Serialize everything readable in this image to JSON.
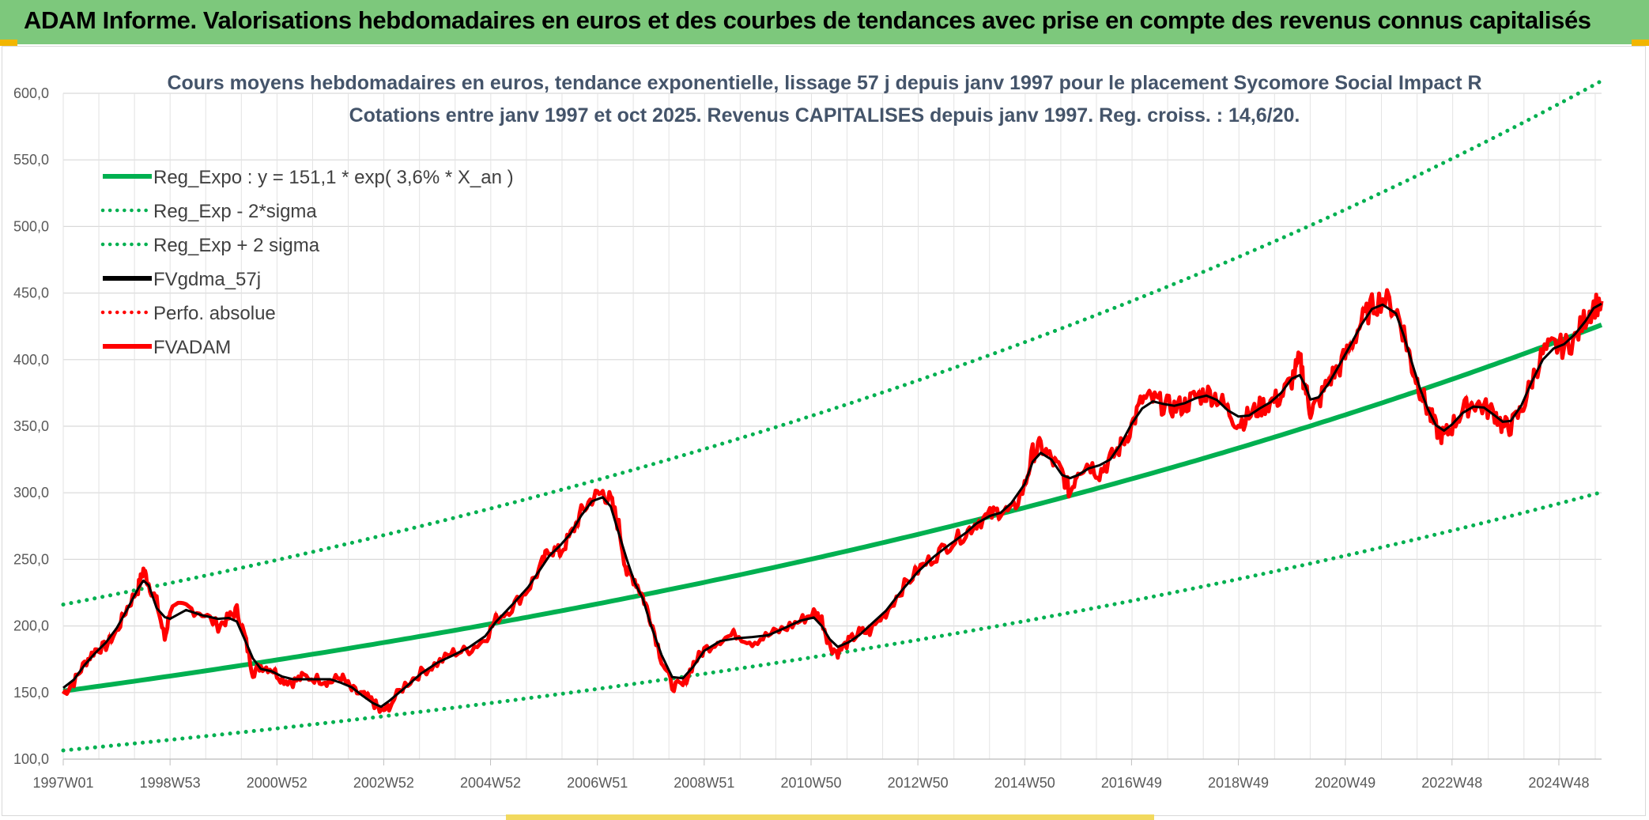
{
  "banner": {
    "title": "ADAM Informe. Valorisations hebdomadaires en euros et des courbes de tendances avec prise en compte des revenus connus capitalisés"
  },
  "chart_data": {
    "type": "line",
    "title_line1": "Cours moyens hebdomadaires en euros, tendance exponentielle, lissage 57 j depuis janv 1997 pour le placement Sycomore Social Impact R",
    "title_line2": "Cotations entre janv 1997 et oct 2025. Revenus CAPITALISES depuis janv 1997. Reg. croiss. : 14,6/20.",
    "xlabel": "",
    "ylabel": "",
    "x_range": [
      1997.0,
      2025.8
    ],
    "ylim": [
      100,
      600
    ],
    "y_ticks": [
      "100,0",
      "150,0",
      "200,0",
      "250,0",
      "300,0",
      "350,0",
      "400,0",
      "450,0",
      "500,0",
      "550,0",
      "600,0"
    ],
    "x_tick_labels": [
      "1997W01",
      "1998W53",
      "2000W52",
      "2002W52",
      "2004W52",
      "2006W51",
      "2008W51",
      "2010W50",
      "2012W50",
      "2014W50",
      "2016W49",
      "2018W49",
      "2020W49",
      "2022W48",
      "2024W48"
    ],
    "x_tick_positions": [
      1997.0,
      1999.0,
      2001.0,
      2003.0,
      2005.0,
      2007.0,
      2009.0,
      2011.0,
      2013.0,
      2015.0,
      2017.0,
      2019.0,
      2021.0,
      2023.0,
      2025.0
    ],
    "grid": true,
    "legend_position": "top-left",
    "regression": {
      "a": 151.1,
      "rate": 0.036,
      "sigma_factor_low": 0.705,
      "sigma_factor_high": 1.43
    },
    "series": [
      {
        "name": "Reg_Expo : y = 151,1 * exp( 3,6% *  X_an )",
        "color": "#00b050",
        "style": "solid"
      },
      {
        "name": "Reg_Exp - 2*sigma",
        "color": "#00b050",
        "style": "dotted"
      },
      {
        "name": "Reg_Exp + 2 sigma",
        "color": "#00b050",
        "style": "dotted"
      },
      {
        "name": "FVgdma_57j",
        "color": "#000000",
        "style": "solid"
      },
      {
        "name": "Perfo. absolue",
        "color": "#ff0000",
        "style": "dotted"
      },
      {
        "name": "FVADAM",
        "color": "#ff0000",
        "style": "solid"
      }
    ],
    "price_points": [
      [
        1997.0,
        149
      ],
      [
        1997.2,
        158
      ],
      [
        1997.4,
        172
      ],
      [
        1997.6,
        182
      ],
      [
        1997.8,
        185
      ],
      [
        1998.0,
        196
      ],
      [
        1998.2,
        214
      ],
      [
        1998.4,
        228
      ],
      [
        1998.5,
        242
      ],
      [
        1998.6,
        232
      ],
      [
        1998.75,
        218
      ],
      [
        1998.9,
        190
      ],
      [
        1999.0,
        212
      ],
      [
        1999.3,
        214
      ],
      [
        1999.6,
        210
      ],
      [
        1999.9,
        200
      ],
      [
        2000.1,
        206
      ],
      [
        2000.25,
        212
      ],
      [
        2000.4,
        192
      ],
      [
        2000.55,
        165
      ],
      [
        2000.7,
        170
      ],
      [
        2000.9,
        168
      ],
      [
        2001.1,
        160
      ],
      [
        2001.3,
        158
      ],
      [
        2001.5,
        162
      ],
      [
        2001.8,
        160
      ],
      [
        2002.0,
        158
      ],
      [
        2002.2,
        162
      ],
      [
        2002.4,
        152
      ],
      [
        2002.6,
        148
      ],
      [
        2002.8,
        143
      ],
      [
        2002.95,
        135
      ],
      [
        2003.1,
        140
      ],
      [
        2003.4,
        156
      ],
      [
        2003.7,
        165
      ],
      [
        2004.0,
        172
      ],
      [
        2004.3,
        180
      ],
      [
        2004.6,
        182
      ],
      [
        2004.9,
        190
      ],
      [
        2005.1,
        205
      ],
      [
        2005.4,
        214
      ],
      [
        2005.7,
        228
      ],
      [
        2005.95,
        245
      ],
      [
        2006.1,
        258
      ],
      [
        2006.3,
        255
      ],
      [
        2006.5,
        268
      ],
      [
        2006.7,
        285
      ],
      [
        2006.9,
        296
      ],
      [
        2007.1,
        300
      ],
      [
        2007.25,
        294
      ],
      [
        2007.4,
        275
      ],
      [
        2007.55,
        240
      ],
      [
        2007.7,
        235
      ],
      [
        2007.85,
        222
      ],
      [
        2008.0,
        205
      ],
      [
        2008.2,
        175
      ],
      [
        2008.4,
        155
      ],
      [
        2008.6,
        155
      ],
      [
        2008.8,
        172
      ],
      [
        2009.0,
        182
      ],
      [
        2009.3,
        190
      ],
      [
        2009.6,
        194
      ],
      [
        2009.9,
        188
      ],
      [
        2010.2,
        193
      ],
      [
        2010.5,
        198
      ],
      [
        2010.8,
        204
      ],
      [
        2011.05,
        210
      ],
      [
        2011.2,
        205
      ],
      [
        2011.35,
        185
      ],
      [
        2011.5,
        180
      ],
      [
        2011.7,
        188
      ],
      [
        2011.9,
        195
      ],
      [
        2012.1,
        196
      ],
      [
        2012.4,
        210
      ],
      [
        2012.7,
        228
      ],
      [
        2013.0,
        242
      ],
      [
        2013.3,
        252
      ],
      [
        2013.6,
        262
      ],
      [
        2013.9,
        270
      ],
      [
        2014.1,
        278
      ],
      [
        2014.35,
        283
      ],
      [
        2014.55,
        287
      ],
      [
        2014.75,
        285
      ],
      [
        2015.0,
        305
      ],
      [
        2015.15,
        330
      ],
      [
        2015.3,
        335
      ],
      [
        2015.5,
        325
      ],
      [
        2015.7,
        315
      ],
      [
        2015.85,
        300
      ],
      [
        2016.0,
        318
      ],
      [
        2016.2,
        322
      ],
      [
        2016.4,
        315
      ],
      [
        2016.6,
        325
      ],
      [
        2016.8,
        335
      ],
      [
        2017.0,
        350
      ],
      [
        2017.2,
        370
      ],
      [
        2017.4,
        370
      ],
      [
        2017.6,
        366
      ],
      [
        2017.8,
        364
      ],
      [
        2018.0,
        366
      ],
      [
        2018.2,
        372
      ],
      [
        2018.4,
        375
      ],
      [
        2018.6,
        372
      ],
      [
        2018.8,
        362
      ],
      [
        2019.0,
        352
      ],
      [
        2019.2,
        358
      ],
      [
        2019.4,
        364
      ],
      [
        2019.6,
        368
      ],
      [
        2019.8,
        372
      ],
      [
        2020.0,
        385
      ],
      [
        2020.15,
        400
      ],
      [
        2020.25,
        380
      ],
      [
        2020.35,
        362
      ],
      [
        2020.5,
        368
      ],
      [
        2020.7,
        385
      ],
      [
        2020.9,
        395
      ],
      [
        2021.1,
        410
      ],
      [
        2021.3,
        428
      ],
      [
        2021.5,
        440
      ],
      [
        2021.7,
        446
      ],
      [
        2021.95,
        438
      ],
      [
        2022.1,
        420
      ],
      [
        2022.25,
        395
      ],
      [
        2022.4,
        378
      ],
      [
        2022.55,
        362
      ],
      [
        2022.7,
        348
      ],
      [
        2022.85,
        342
      ],
      [
        2023.0,
        350
      ],
      [
        2023.2,
        362
      ],
      [
        2023.4,
        368
      ],
      [
        2023.6,
        364
      ],
      [
        2023.8,
        360
      ],
      [
        2023.95,
        350
      ],
      [
        2024.1,
        350
      ],
      [
        2024.3,
        362
      ],
      [
        2024.5,
        385
      ],
      [
        2024.7,
        405
      ],
      [
        2024.9,
        410
      ],
      [
        2025.1,
        410
      ],
      [
        2025.3,
        415
      ],
      [
        2025.5,
        432
      ],
      [
        2025.65,
        440
      ],
      [
        2025.8,
        444
      ]
    ]
  }
}
